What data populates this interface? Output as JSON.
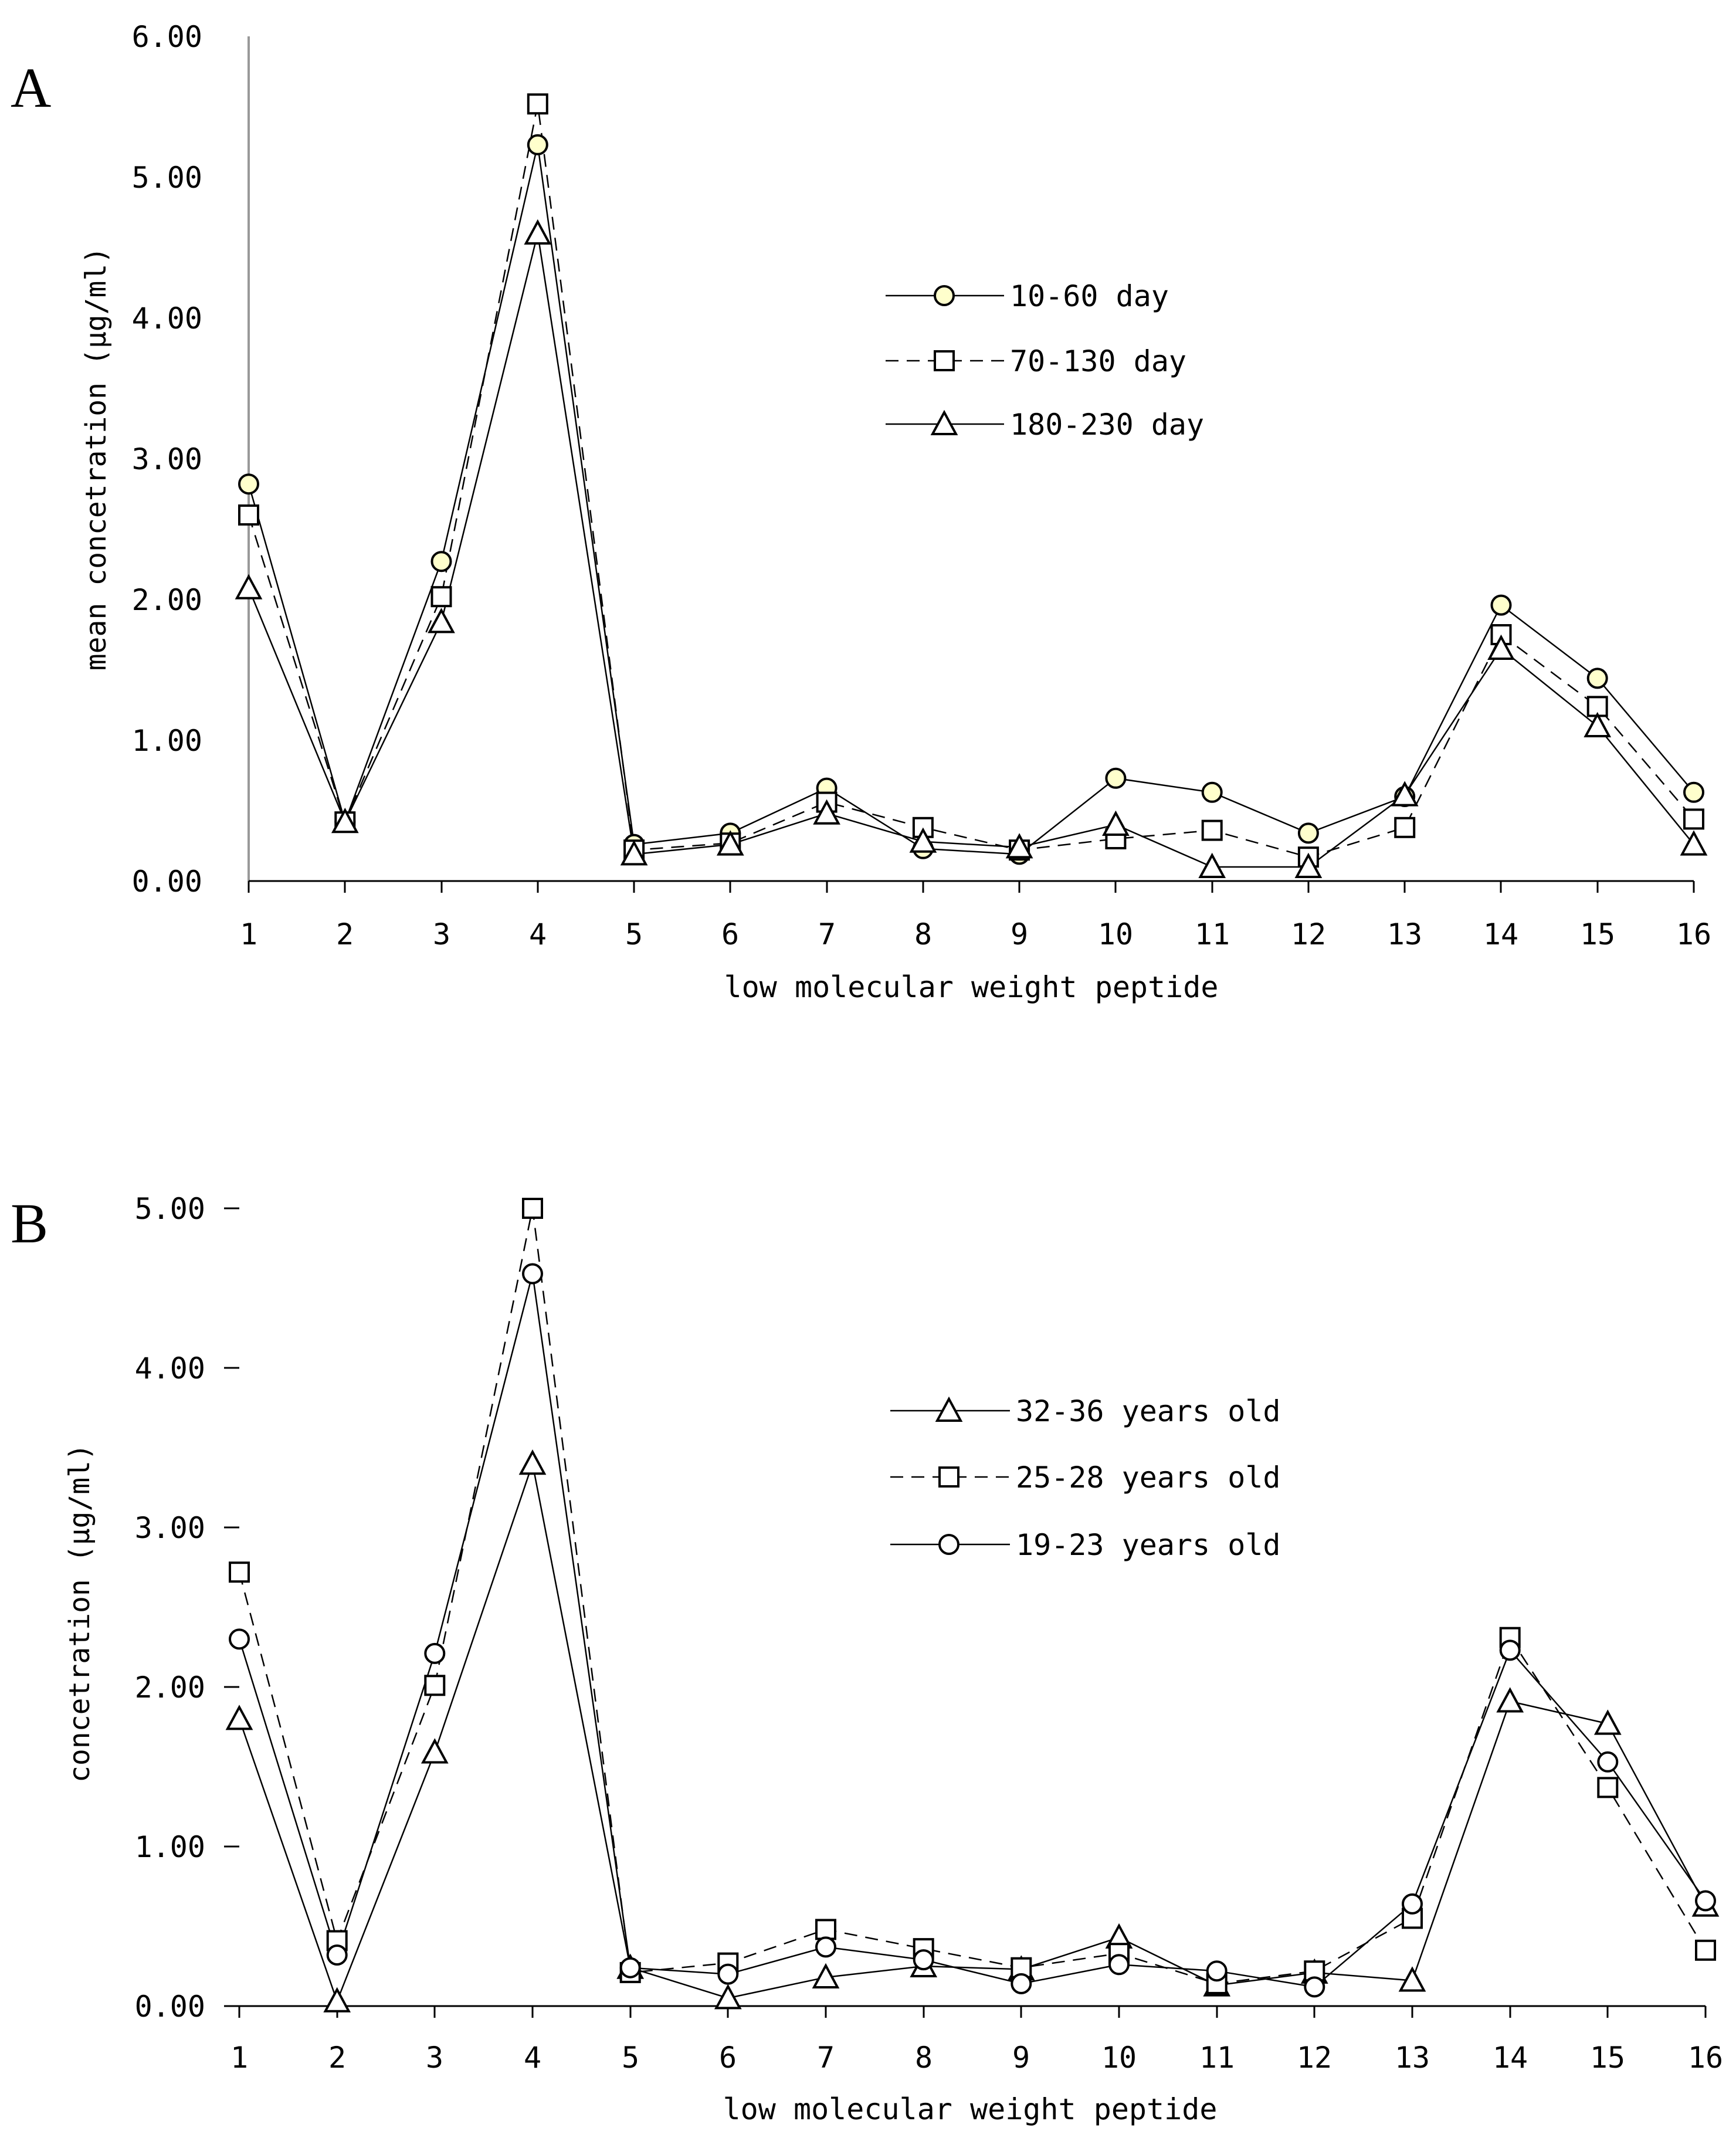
{
  "chart_data": [
    {
      "type": "line",
      "panel_label": "A",
      "title": "",
      "xlabel": "low molecular weight peptide",
      "ylabel": "mean concetration (μg/ml)",
      "ylim": [
        0,
        6
      ],
      "ytick_labels": [
        "0.00",
        "1.00",
        "2.00",
        "3.00",
        "4.00",
        "5.00",
        "6.00"
      ],
      "categories": [
        "1",
        "2",
        "3",
        "4",
        "5",
        "6",
        "7",
        "8",
        "9",
        "10",
        "11",
        "12",
        "13",
        "14",
        "15",
        "16"
      ],
      "legend_position": "upper-right",
      "series": [
        {
          "name": "10-60 day",
          "marker": "circle",
          "fill": "#ffffcc",
          "dash": "solid",
          "values": [
            2.82,
            0.42,
            2.27,
            5.23,
            0.26,
            0.34,
            0.66,
            0.23,
            0.19,
            0.73,
            0.63,
            0.34,
            0.6,
            1.96,
            1.44,
            0.63
          ]
        },
        {
          "name": "70-130 day",
          "marker": "square",
          "fill": "#ffffff",
          "dash": "dashed",
          "values": [
            2.6,
            0.42,
            2.02,
            5.52,
            0.22,
            0.27,
            0.56,
            0.38,
            0.22,
            0.3,
            0.36,
            0.17,
            0.38,
            1.75,
            1.24,
            0.44
          ]
        },
        {
          "name": "180-230 day",
          "marker": "triangle",
          "fill": "#ffffff",
          "dash": "solid",
          "values": [
            2.08,
            0.42,
            1.84,
            4.6,
            0.19,
            0.26,
            0.48,
            0.28,
            0.24,
            0.4,
            0.1,
            0.1,
            0.61,
            1.65,
            1.1,
            0.26
          ]
        }
      ]
    },
    {
      "type": "line",
      "panel_label": "B",
      "title": "",
      "xlabel": "low molecular weight peptide",
      "ylabel": "concetration (μg/ml)",
      "ylim": [
        0,
        5
      ],
      "ytick_labels": [
        "0.00",
        "1.00",
        "2.00",
        "3.00",
        "4.00",
        "5.00"
      ],
      "categories": [
        "1",
        "2",
        "3",
        "4",
        "5",
        "6",
        "7",
        "8",
        "9",
        "10",
        "11",
        "12",
        "13",
        "14",
        "15",
        "16"
      ],
      "legend_position": "upper-right",
      "series": [
        {
          "name": "32-36 years old",
          "marker": "triangle",
          "fill": "#ffffff",
          "dash": "solid",
          "values": [
            1.8,
            0.03,
            1.59,
            3.4,
            0.24,
            0.05,
            0.18,
            0.25,
            0.23,
            0.43,
            0.13,
            0.21,
            0.16,
            1.91,
            1.77,
            0.63
          ]
        },
        {
          "name": "25-28 years old",
          "marker": "square",
          "fill": "#ffffff",
          "dash": "dashed",
          "values": [
            2.72,
            0.41,
            2.01,
            5.0,
            0.21,
            0.27,
            0.48,
            0.36,
            0.24,
            0.33,
            0.14,
            0.22,
            0.55,
            2.31,
            1.37,
            0.35
          ]
        },
        {
          "name": "19-23 years old",
          "marker": "circle",
          "fill": "#ffffff",
          "dash": "solid",
          "values": [
            2.3,
            0.32,
            2.21,
            4.59,
            0.24,
            0.2,
            0.37,
            0.29,
            0.14,
            0.26,
            0.22,
            0.12,
            0.64,
            2.23,
            1.53,
            0.66
          ]
        }
      ]
    }
  ]
}
